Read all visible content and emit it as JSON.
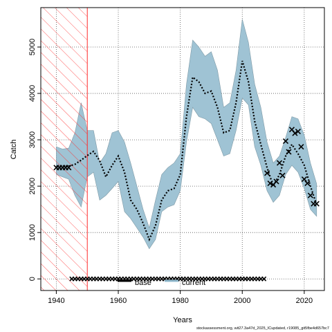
{
  "chart_data": {
    "type": "line",
    "xlabel": "Years",
    "ylabel": "Catch",
    "xlim": [
      1935,
      2026.5
    ],
    "ylim": [
      -250,
      5850
    ],
    "x_ticks": [
      1940,
      1960,
      1980,
      2000,
      2020
    ],
    "y_ticks": [
      0,
      1000,
      2000,
      3000,
      4000,
      5000
    ],
    "grid": true,
    "shaded_period": [
      1935,
      1950
    ],
    "legend": {
      "placement": "bottom-center",
      "entries": [
        {
          "label": "base",
          "color": "#000000"
        },
        {
          "label": "current",
          "color": "#8fb8cc"
        }
      ]
    },
    "band_color": "#9fc3d4",
    "years": [
      1940,
      1942,
      1944,
      1946,
      1948,
      1950,
      1952,
      1954,
      1956,
      1958,
      1960,
      1962,
      1964,
      1966,
      1968,
      1970,
      1972,
      1974,
      1976,
      1978,
      1980,
      1982,
      1984,
      1986,
      1988,
      1990,
      1992,
      1994,
      1996,
      1998,
      2000,
      2002,
      2004,
      2006,
      2008,
      2010,
      2012,
      2014,
      2016,
      2018,
      2020,
      2022,
      2024
    ],
    "series": [
      {
        "name": "base",
        "type": "dashed-line",
        "color": "#000000",
        "values": [
          2420,
          2410,
          2430,
          2470,
          2560,
          2660,
          2750,
          2550,
          2200,
          2450,
          2650,
          2300,
          1700,
          1500,
          1200,
          850,
          1150,
          1700,
          1900,
          1950,
          2250,
          3500,
          4350,
          4250,
          4000,
          4050,
          3700,
          3150,
          3200,
          3800,
          4700,
          4250,
          3400,
          2900,
          2400,
          2000,
          2250,
          2650,
          2900,
          2700,
          2450,
          2000,
          1600
        ]
      },
      {
        "name": "current-upper",
        "type": "band",
        "values": [
          2850,
          2800,
          2820,
          3150,
          3800,
          3200,
          3200,
          2500,
          2700,
          3150,
          3200,
          2950,
          2500,
          2000,
          1500,
          1100,
          1700,
          2250,
          2400,
          2500,
          2700,
          4200,
          5150,
          5000,
          4800,
          4900,
          4500,
          3700,
          3800,
          4500,
          5600,
          5100,
          4200,
          3700,
          2950,
          2500,
          2650,
          3050,
          3500,
          3450,
          3100,
          2500,
          2050
        ]
      },
      {
        "name": "current-lower",
        "type": "band",
        "values": [
          2250,
          2200,
          2150,
          1800,
          1550,
          2200,
          2300,
          1700,
          1800,
          1950,
          2100,
          1450,
          1300,
          1100,
          900,
          650,
          850,
          1450,
          1550,
          1600,
          1900,
          2950,
          3700,
          3500,
          3450,
          3350,
          3000,
          2650,
          2700,
          3200,
          3900,
          3750,
          2850,
          2450,
          1900,
          1650,
          1800,
          2250,
          2450,
          2300,
          1950,
          1500,
          1350
        ]
      }
    ],
    "observed_catch": {
      "marker": "x",
      "points": [
        [
          1940,
          2400
        ],
        [
          1941,
          2400
        ],
        [
          1942,
          2400
        ],
        [
          1943,
          2400
        ],
        [
          1944,
          2400
        ],
        [
          2008,
          2280
        ],
        [
          2009,
          2060
        ],
        [
          2010,
          2030
        ],
        [
          2011,
          2100
        ],
        [
          2012,
          2500
        ],
        [
          2013,
          2230
        ],
        [
          2014,
          2970
        ],
        [
          2015,
          2740
        ],
        [
          2016,
          3220
        ],
        [
          2017,
          3140
        ],
        [
          2018,
          3180
        ],
        [
          2019,
          2850
        ],
        [
          2020,
          2150
        ],
        [
          2021,
          2060
        ],
        [
          2022,
          1800
        ],
        [
          2023,
          1620
        ],
        [
          2024,
          1620
        ]
      ]
    },
    "zero_catch_years": [
      1945,
      1946,
      1947,
      1948,
      1949,
      1950,
      1951,
      1952,
      1953,
      1954,
      1955,
      1956,
      1957,
      1958,
      1959,
      1960,
      1961,
      1962,
      1963,
      1964,
      1965,
      1966,
      1967,
      1968,
      1969,
      1970,
      1971,
      1972,
      1973,
      1974,
      1975,
      1976,
      1977,
      1978,
      1979,
      1980,
      1981,
      1982,
      1983,
      1984,
      1985,
      1986,
      1987,
      1988,
      1989,
      1990,
      1991,
      1992,
      1993,
      1994,
      1995,
      1996,
      1997,
      1998,
      1999,
      2000,
      2001,
      2002,
      2003,
      2004,
      2005,
      2006,
      2007
    ]
  },
  "footer_text": "stockassessment.org, wit27.3a47d_2025_ICupdated, r19085_git5fbe4d657bc7"
}
